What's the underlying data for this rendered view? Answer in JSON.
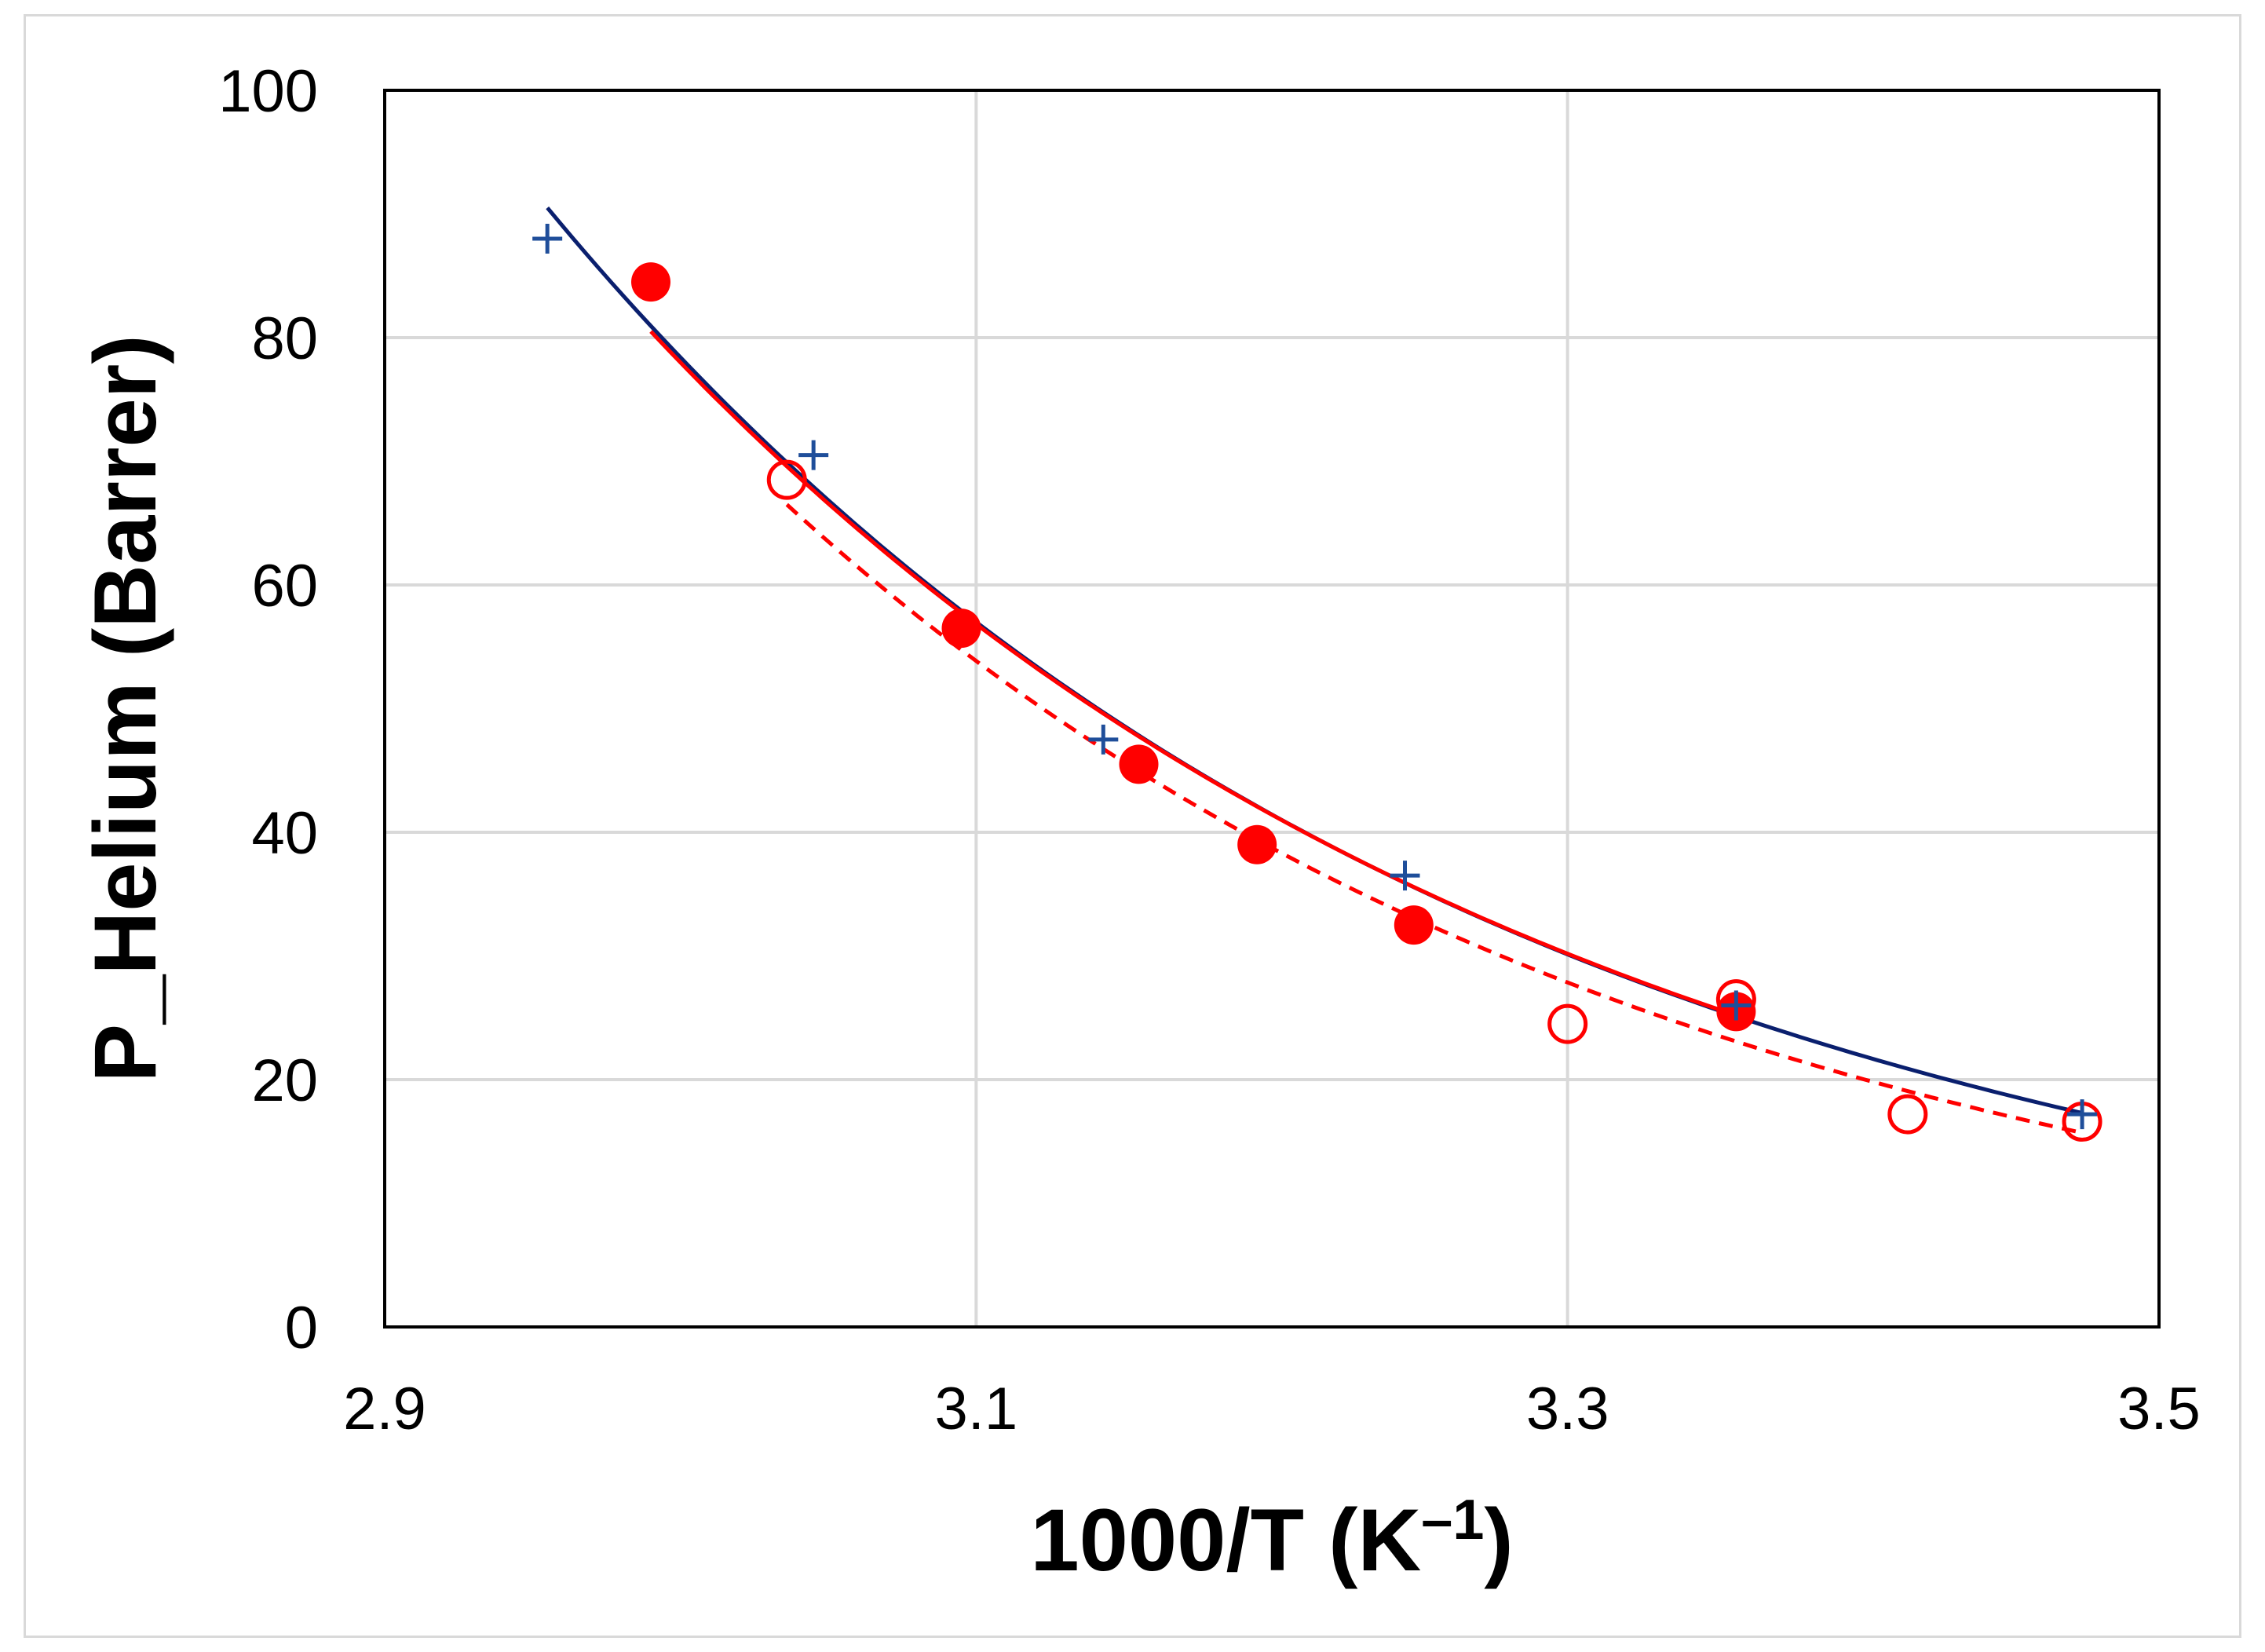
{
  "chart_data": {
    "type": "scatter",
    "title": "",
    "xlabel": "1000/T (K–1)",
    "xlabel_main": "1000/T (K",
    "xlabel_sup": "–1",
    "xlabel_close": ")",
    "ylabel": "P_Helium (Barrer)",
    "xlim": [
      2.9,
      3.5
    ],
    "ylim": [
      0,
      100
    ],
    "grid": true,
    "x_ticks": [
      2.9,
      3.1,
      3.3,
      3.5
    ],
    "x_tick_labels": [
      "2.9",
      "3.1",
      "3.3",
      "3.5"
    ],
    "y_ticks": [
      0,
      20,
      40,
      60,
      80,
      100
    ],
    "y_tick_labels": [
      "0",
      "20",
      "40",
      "60",
      "80",
      "100"
    ],
    "colors": {
      "red": "#ff0000",
      "blue": "#1f4e9a",
      "navy": "#0a1f6e",
      "grid": "#d9d9d9"
    },
    "series": [
      {
        "name": "filled-circles",
        "marker": "filled-circle",
        "color": "#ff0000",
        "points": [
          [
            2.99,
            84.5
          ],
          [
            3.095,
            56.5
          ],
          [
            3.155,
            45.5
          ],
          [
            3.195,
            39
          ],
          [
            3.248,
            32.5
          ],
          [
            3.357,
            25.5
          ]
        ]
      },
      {
        "name": "open-circles",
        "marker": "open-circle",
        "color": "#ff0000",
        "points": [
          [
            3.036,
            68.5
          ],
          [
            3.3,
            24.5
          ],
          [
            3.357,
            26.5
          ],
          [
            3.415,
            17.2
          ],
          [
            3.474,
            16.6
          ]
        ]
      },
      {
        "name": "plus-markers",
        "marker": "plus",
        "color": "#1f4e9a",
        "points": [
          [
            2.955,
            88
          ],
          [
            3.045,
            70.5
          ],
          [
            3.143,
            47.5
          ],
          [
            3.245,
            36.5
          ],
          [
            3.357,
            26
          ],
          [
            3.474,
            17.2
          ]
        ]
      }
    ],
    "fits": [
      {
        "name": "navy-fit",
        "style": "solid",
        "color": "#0a1f6e",
        "x_range": [
          2.955,
          3.474
        ],
        "anchor_points": [
          [
            2.955,
            90.5
          ],
          [
            3.474,
            17.3
          ]
        ]
      },
      {
        "name": "red-fit",
        "style": "solid",
        "color": "#ff0000",
        "x_range": [
          2.99,
          3.357
        ],
        "anchor_points": [
          [
            2.99,
            80.5
          ],
          [
            3.357,
            25.2
          ]
        ]
      },
      {
        "name": "red-dashed-fit",
        "style": "dashed",
        "color": "#ff0000",
        "x_range": [
          3.036,
          3.474
        ],
        "anchor_points": [
          [
            3.036,
            66.5
          ],
          [
            3.474,
            15.7
          ]
        ]
      }
    ]
  }
}
